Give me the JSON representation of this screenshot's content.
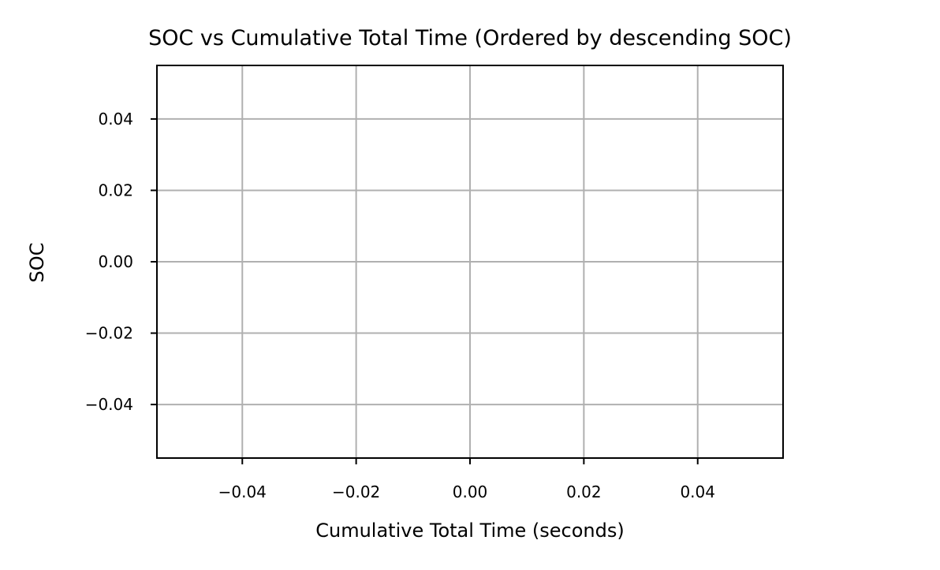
{
  "chart_data": {
    "type": "line",
    "title": "SOC vs Cumulative Total Time (Ordered by descending SOC)",
    "xlabel": "Cumulative Total Time (seconds)",
    "ylabel": "SOC",
    "xlim": [
      -0.055,
      0.055
    ],
    "ylim": [
      -0.055,
      0.055
    ],
    "x_ticks": [
      -0.04,
      -0.02,
      0.0,
      0.02,
      0.04
    ],
    "y_ticks": [
      -0.04,
      -0.02,
      0.0,
      0.02,
      0.04
    ],
    "x_tick_labels": [
      "−0.04",
      "−0.02",
      "0.00",
      "0.02",
      "0.04"
    ],
    "y_tick_labels": [
      "−0.04",
      "−0.02",
      "0.00",
      "0.02",
      "0.04"
    ],
    "grid": true,
    "series": [],
    "colors": {
      "grid": "#b0b0b0",
      "axes": "#000000",
      "background": "#ffffff"
    }
  }
}
